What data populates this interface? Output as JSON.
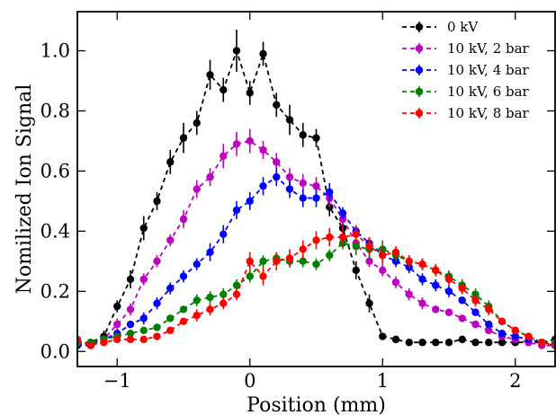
{
  "chart_data": {
    "type": "line",
    "title": "",
    "xlabel": "Position (mm)",
    "ylabel": "Nomilized Ion Signal",
    "xlim": [
      -1.3,
      2.3
    ],
    "ylim": [
      -0.05,
      1.13
    ],
    "xticks": [
      -1,
      0,
      1,
      2
    ],
    "xtick_labels": [
      "−1",
      "0",
      "1",
      "2"
    ],
    "yticks": [
      0.0,
      0.2,
      0.4,
      0.6,
      0.8,
      1.0
    ],
    "ytick_labels": [
      "0.0",
      "0.2",
      "0.4",
      "0.6",
      "0.8",
      "1.0"
    ],
    "grid": false,
    "legend_position": "top-right",
    "series": [
      {
        "name": "0 kV",
        "color": "#000000",
        "x": [
          -1.3,
          -1.2,
          -1.1,
          -1.0,
          -0.9,
          -0.8,
          -0.7,
          -0.6,
          -0.5,
          -0.4,
          -0.3,
          -0.2,
          -0.1,
          0.0,
          0.1,
          0.2,
          0.3,
          0.4,
          0.5,
          0.6,
          0.7,
          0.8,
          0.9,
          1.0,
          1.1,
          1.2,
          1.3,
          1.4,
          1.5,
          1.6,
          1.7,
          1.8,
          1.9,
          2.0,
          2.1,
          2.2,
          2.3
        ],
        "y": [
          0.02,
          0.03,
          0.05,
          0.15,
          0.24,
          0.41,
          0.5,
          0.63,
          0.71,
          0.76,
          0.92,
          0.87,
          1.0,
          0.86,
          0.99,
          0.82,
          0.77,
          0.72,
          0.71,
          0.48,
          0.41,
          0.27,
          0.16,
          0.05,
          0.04,
          0.03,
          0.03,
          0.03,
          0.03,
          0.04,
          0.03,
          0.03,
          0.03,
          0.03,
          0.03,
          0.03,
          0.04
        ],
        "err": [
          0.01,
          0.01,
          0.02,
          0.02,
          0.03,
          0.04,
          0.03,
          0.04,
          0.05,
          0.04,
          0.05,
          0.04,
          0.07,
          0.04,
          0.04,
          0.04,
          0.05,
          0.04,
          0.03,
          0.03,
          0.03,
          0.03,
          0.03,
          0.01,
          0.01,
          0.01,
          0.01,
          0.01,
          0.01,
          0.01,
          0.01,
          0.01,
          0.01,
          0.01,
          0.01,
          0.01,
          0.01
        ]
      },
      {
        "name": "10 kV, 2 bar",
        "color": "#bf00bf",
        "x": [
          -1.3,
          -1.2,
          -1.1,
          -1.0,
          -0.9,
          -0.8,
          -0.7,
          -0.6,
          -0.5,
          -0.4,
          -0.3,
          -0.2,
          -0.1,
          0.0,
          0.1,
          0.2,
          0.3,
          0.4,
          0.5,
          0.6,
          0.7,
          0.8,
          0.9,
          1.0,
          1.1,
          1.2,
          1.3,
          1.4,
          1.5,
          1.6,
          1.7,
          1.8,
          1.9,
          2.0,
          2.1,
          2.2,
          2.3
        ],
        "y": [
          0.03,
          0.02,
          0.04,
          0.09,
          0.14,
          0.24,
          0.3,
          0.37,
          0.44,
          0.54,
          0.58,
          0.65,
          0.69,
          0.7,
          0.67,
          0.63,
          0.58,
          0.56,
          0.55,
          0.51,
          0.44,
          0.36,
          0.3,
          0.27,
          0.23,
          0.19,
          0.16,
          0.14,
          0.13,
          0.11,
          0.09,
          0.07,
          0.05,
          0.04,
          0.03,
          0.02,
          0.02
        ],
        "err": [
          0.01,
          0.01,
          0.01,
          0.02,
          0.02,
          0.02,
          0.02,
          0.02,
          0.03,
          0.03,
          0.03,
          0.04,
          0.04,
          0.04,
          0.03,
          0.03,
          0.03,
          0.03,
          0.03,
          0.03,
          0.03,
          0.03,
          0.02,
          0.02,
          0.02,
          0.02,
          0.02,
          0.01,
          0.01,
          0.01,
          0.01,
          0.01,
          0.01,
          0.01,
          0.01,
          0.01,
          0.01
        ]
      },
      {
        "name": "10 kV, 4 bar",
        "color": "#0000ff",
        "x": [
          -1.3,
          -1.2,
          -1.1,
          -1.0,
          -0.9,
          -0.8,
          -0.7,
          -0.6,
          -0.5,
          -0.4,
          -0.3,
          -0.2,
          -0.1,
          0.0,
          0.1,
          0.2,
          0.3,
          0.4,
          0.5,
          0.6,
          0.7,
          0.8,
          0.9,
          1.0,
          1.1,
          1.2,
          1.3,
          1.4,
          1.5,
          1.6,
          1.7,
          1.8,
          1.9,
          2.0,
          2.1,
          2.2,
          2.3
        ],
        "y": [
          0.02,
          0.02,
          0.04,
          0.06,
          0.09,
          0.11,
          0.16,
          0.21,
          0.25,
          0.29,
          0.33,
          0.39,
          0.47,
          0.5,
          0.55,
          0.58,
          0.54,
          0.51,
          0.51,
          0.53,
          0.46,
          0.4,
          0.36,
          0.32,
          0.3,
          0.28,
          0.24,
          0.22,
          0.2,
          0.17,
          0.13,
          0.09,
          0.06,
          0.05,
          0.04,
          0.03,
          0.02
        ],
        "err": [
          0.01,
          0.01,
          0.01,
          0.01,
          0.01,
          0.02,
          0.02,
          0.02,
          0.02,
          0.02,
          0.03,
          0.03,
          0.03,
          0.03,
          0.03,
          0.03,
          0.03,
          0.03,
          0.03,
          0.03,
          0.02,
          0.02,
          0.02,
          0.02,
          0.02,
          0.02,
          0.02,
          0.02,
          0.02,
          0.01,
          0.01,
          0.01,
          0.01,
          0.01,
          0.01,
          0.01,
          0.01
        ]
      },
      {
        "name": "10 kV, 6 bar",
        "color": "#008000",
        "x": [
          -1.3,
          -1.2,
          -1.1,
          -1.0,
          -0.9,
          -0.8,
          -0.7,
          -0.6,
          -0.5,
          -0.4,
          -0.3,
          -0.2,
          -0.1,
          0.0,
          0.1,
          0.2,
          0.3,
          0.4,
          0.5,
          0.6,
          0.7,
          0.8,
          0.9,
          1.0,
          1.1,
          1.2,
          1.3,
          1.4,
          1.5,
          1.6,
          1.7,
          1.8,
          1.9,
          2.0,
          2.1,
          2.2,
          2.3
        ],
        "y": [
          0.03,
          0.03,
          0.04,
          0.05,
          0.06,
          0.07,
          0.08,
          0.11,
          0.14,
          0.17,
          0.18,
          0.19,
          0.22,
          0.25,
          0.3,
          0.31,
          0.3,
          0.3,
          0.29,
          0.32,
          0.36,
          0.35,
          0.34,
          0.34,
          0.32,
          0.3,
          0.29,
          0.27,
          0.25,
          0.22,
          0.19,
          0.15,
          0.1,
          0.07,
          0.05,
          0.03,
          0.03
        ],
        "err": [
          0.01,
          0.01,
          0.01,
          0.01,
          0.01,
          0.01,
          0.01,
          0.01,
          0.01,
          0.02,
          0.02,
          0.02,
          0.02,
          0.02,
          0.02,
          0.02,
          0.02,
          0.02,
          0.02,
          0.02,
          0.02,
          0.03,
          0.03,
          0.03,
          0.02,
          0.02,
          0.02,
          0.02,
          0.02,
          0.02,
          0.02,
          0.02,
          0.01,
          0.01,
          0.01,
          0.01,
          0.01
        ]
      },
      {
        "name": "10 kV, 8 bar",
        "color": "#ff0000",
        "x": [
          -1.3,
          -1.2,
          -1.1,
          -1.0,
          -0.9,
          -0.8,
          -0.7,
          -0.6,
          -0.5,
          -0.4,
          -0.3,
          -0.2,
          -0.1,
          0.0,
          0.1,
          0.2,
          0.3,
          0.4,
          0.5,
          0.6,
          0.7,
          0.8,
          0.9,
          1.0,
          1.1,
          1.2,
          1.3,
          1.4,
          1.5,
          1.6,
          1.7,
          1.8,
          1.9,
          2.0,
          2.1,
          2.2,
          2.3
        ],
        "y": [
          0.04,
          0.02,
          0.03,
          0.04,
          0.04,
          0.04,
          0.05,
          0.07,
          0.1,
          0.12,
          0.14,
          0.16,
          0.19,
          0.3,
          0.25,
          0.3,
          0.31,
          0.34,
          0.37,
          0.38,
          0.38,
          0.39,
          0.35,
          0.32,
          0.33,
          0.3,
          0.29,
          0.27,
          0.24,
          0.21,
          0.17,
          0.14,
          0.1,
          0.07,
          0.05,
          0.03,
          0.02
        ],
        "err": [
          0.01,
          0.01,
          0.01,
          0.01,
          0.01,
          0.01,
          0.01,
          0.01,
          0.01,
          0.02,
          0.02,
          0.02,
          0.02,
          0.03,
          0.03,
          0.03,
          0.03,
          0.03,
          0.03,
          0.03,
          0.03,
          0.03,
          0.03,
          0.03,
          0.02,
          0.02,
          0.02,
          0.02,
          0.02,
          0.02,
          0.02,
          0.02,
          0.01,
          0.01,
          0.01,
          0.01,
          0.01
        ]
      }
    ]
  }
}
